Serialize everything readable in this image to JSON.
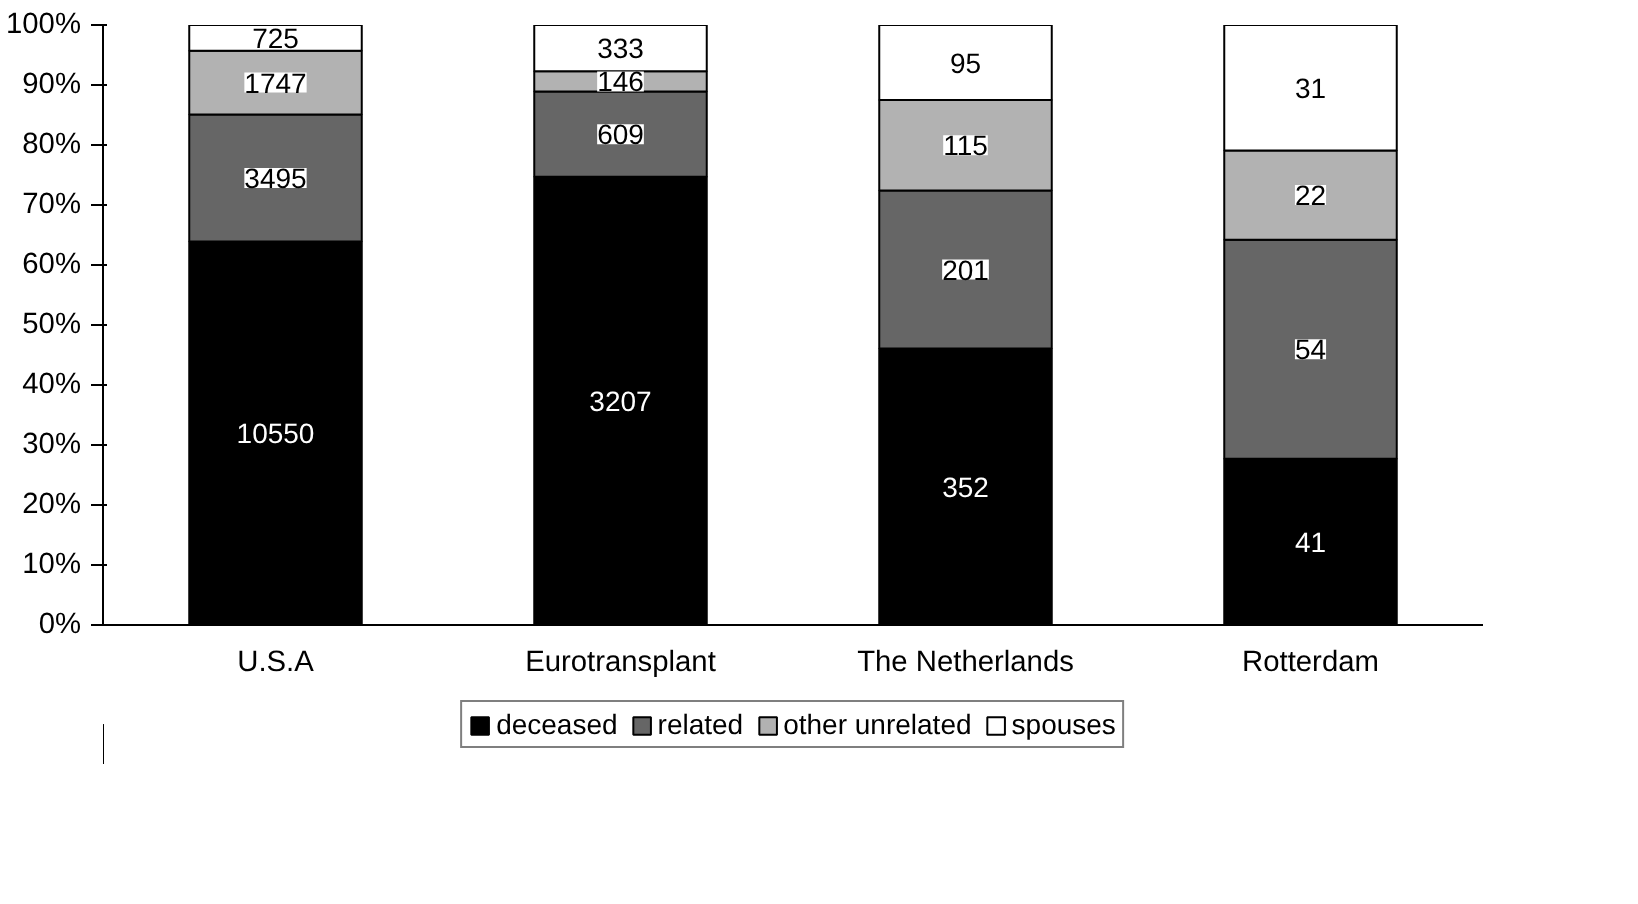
{
  "chart_data": {
    "type": "bar",
    "stacked": true,
    "categories": [
      "U.S.A",
      "Eurotransplant",
      "The Netherlands",
      "Rotterdam"
    ],
    "series": [
      {
        "name": "deceased",
        "color": "#000000",
        "values": [
          63.9,
          74.7,
          46.1,
          27.7
        ]
      },
      {
        "name": "related",
        "color": "#666666",
        "values": [
          21.2,
          14.2,
          26.3,
          36.5
        ]
      },
      {
        "name": "other unrelated",
        "color": "#b2b2b2",
        "values": [
          10.6,
          3.4,
          15.1,
          14.9
        ]
      },
      {
        "name": "spouses",
        "color": "#ffffff",
        "values": [
          4.3,
          7.7,
          12.5,
          20.9
        ]
      }
    ],
    "annotations": [
      "10550",
      "3495",
      "1747",
      "725",
      "3207",
      "609",
      "146",
      "333",
      "352",
      "201",
      "115",
      "95",
      "41",
      "54",
      "22",
      "31"
    ],
    "ylim": [
      0,
      100
    ],
    "yticks": [
      {
        "value": 0,
        "label": "0%"
      },
      {
        "value": 10,
        "label": "10%"
      },
      {
        "value": 20,
        "label": "20%"
      },
      {
        "value": 30,
        "label": "30%"
      },
      {
        "value": 40,
        "label": "40%"
      },
      {
        "value": 50,
        "label": "50%"
      },
      {
        "value": 60,
        "label": "60%"
      },
      {
        "value": 70,
        "label": "70%"
      },
      {
        "value": 80,
        "label": "80%"
      },
      {
        "value": 90,
        "label": "90%"
      },
      {
        "value": 100,
        "label": "100%"
      }
    ],
    "grid": false,
    "legend": "bottom"
  }
}
